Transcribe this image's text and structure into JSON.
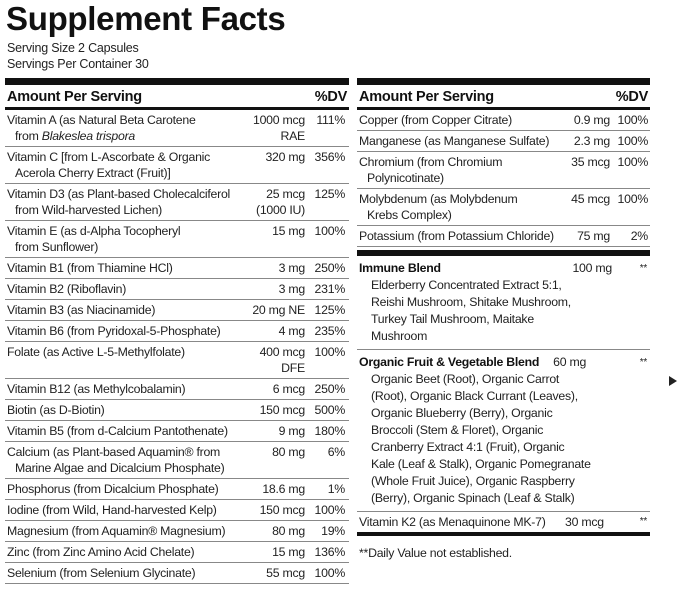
{
  "title": "Supplement Facts",
  "serving_size": "Serving Size 2 Capsules",
  "servings_per_container": "Servings Per Container 30",
  "left": {
    "header": {
      "label": "Amount Per Serving",
      "dv": "%DV"
    },
    "rows": [
      {
        "name": [
          "Vitamin A (as Natural Beta Carotene",
          "from"
        ],
        "name_italic": "Blakeslea trispora",
        "amount": [
          "1000 mcg",
          "RAE"
        ],
        "dv": "111%"
      },
      {
        "name": [
          "Vitamin C [from L-Ascorbate & Organic",
          "Acerola Cherry Extract (Fruit)]"
        ],
        "amount": [
          "320 mg"
        ],
        "dv": "356%"
      },
      {
        "name": [
          "Vitamin D3 (as Plant-based Cholecalciferol",
          "from Wild-harvested Lichen)"
        ],
        "amount": [
          "25 mcg",
          "(1000 IU)"
        ],
        "dv": "125%"
      },
      {
        "name": [
          "Vitamin E (as d-Alpha Tocopheryl",
          "from Sunflower)"
        ],
        "amount": [
          "15 mg"
        ],
        "dv": "100%"
      },
      {
        "name": [
          "Vitamin B1 (from Thiamine HCl)"
        ],
        "amount": [
          "3 mg"
        ],
        "dv": "250%"
      },
      {
        "name": [
          "Vitamin B2 (Riboflavin)"
        ],
        "amount": [
          "3 mg"
        ],
        "dv": "231%"
      },
      {
        "name": [
          "Vitamin B3 (as Niacinamide)"
        ],
        "amount": [
          "20 mg NE"
        ],
        "dv": "125%"
      },
      {
        "name": [
          "Vitamin B6 (from Pyridoxal-5-Phosphate)"
        ],
        "amount": [
          "4 mg"
        ],
        "dv": "235%"
      },
      {
        "name": [
          "Folate (as Active L-5-Methylfolate)"
        ],
        "amount": [
          "400 mcg",
          "DFE"
        ],
        "dv": "100%"
      },
      {
        "name": [
          "Vitamin B12 (as Methylcobalamin)"
        ],
        "amount": [
          "6 mcg"
        ],
        "dv": "250%"
      },
      {
        "name": [
          "Biotin (as D-Biotin)"
        ],
        "amount": [
          "150 mcg"
        ],
        "dv": "500%"
      },
      {
        "name": [
          "Vitamin B5 (from d-Calcium Pantothenate)"
        ],
        "amount": [
          "9 mg"
        ],
        "dv": "180%"
      },
      {
        "name": [
          "Calcium (as Plant-based Aquamin® from",
          "Marine Algae and Dicalcium Phosphate)"
        ],
        "amount": [
          "80 mg"
        ],
        "dv": "6%"
      },
      {
        "name": [
          "Phosphorus (from Dicalcium Phosphate)"
        ],
        "amount": [
          "18.6 mg"
        ],
        "dv": "1%"
      },
      {
        "name": [
          "Iodine (from Wild, Hand-harvested Kelp)"
        ],
        "amount": [
          "150 mcg"
        ],
        "dv": "100%"
      },
      {
        "name": [
          "Magnesium (from Aquamin® Magnesium)"
        ],
        "amount": [
          "80 mg"
        ],
        "dv": "19%"
      },
      {
        "name": [
          "Zinc (from Zinc Amino Acid Chelate)"
        ],
        "amount": [
          "15 mg"
        ],
        "dv": "136%"
      },
      {
        "name": [
          "Selenium (from Selenium Glycinate)"
        ],
        "amount": [
          "55 mcg"
        ],
        "dv": "100%"
      }
    ]
  },
  "right": {
    "header": {
      "label": "Amount Per Serving",
      "dv": "%DV"
    },
    "rows": [
      {
        "name": [
          "Copper (from Copper Citrate)"
        ],
        "amount": [
          "0.9 mg"
        ],
        "dv": "100%"
      },
      {
        "name": [
          "Manganese (as Manganese Sulfate)"
        ],
        "amount": [
          "2.3 mg"
        ],
        "dv": "100%"
      },
      {
        "name": [
          "Chromium (from Chromium",
          "Polynicotinate)"
        ],
        "amount": [
          "35 mcg"
        ],
        "dv": "100%"
      },
      {
        "name": [
          "Molybdenum (as Molybdenum",
          "Krebs Complex)"
        ],
        "amount": [
          "45 mcg"
        ],
        "dv": "100%"
      },
      {
        "name": [
          "Potassium (from Potassium Chloride)"
        ],
        "amount": [
          "75 mg"
        ],
        "dv": "2%"
      }
    ],
    "blends": [
      {
        "name": "Immune Blend",
        "amount": "100 mg",
        "dv": "**",
        "ingredients": [
          "Elderberry Concentrated Extract 5:1,",
          "Reishi Mushroom, Shitake Mushroom,",
          "Turkey Tail Mushroom, Maitake",
          "Mushroom"
        ]
      },
      {
        "name": "Organic Fruit & Vegetable Blend",
        "amount": "60 mg",
        "dv": "**",
        "ingredients": [
          "Organic Beet (Root), Organic Carrot",
          "(Root), Organic Black Currant (Leaves),",
          "Organic Blueberry (Berry), Organic",
          "Broccoli (Stem & Floret), Organic",
          "Cranberry Extract 4:1 (Fruit), Organic",
          "Kale (Leaf & Stalk), Organic Pomegranate",
          "(Whole Fruit Juice), Organic Raspberry",
          "(Berry), Organic Spinach (Leaf & Stalk)"
        ]
      }
    ],
    "last_row": {
      "name": "Vitamin K2 (as Menaquinone MK-7)",
      "amount": "30 mcg",
      "dv": "**"
    },
    "footnote": "**Daily Value not established."
  }
}
